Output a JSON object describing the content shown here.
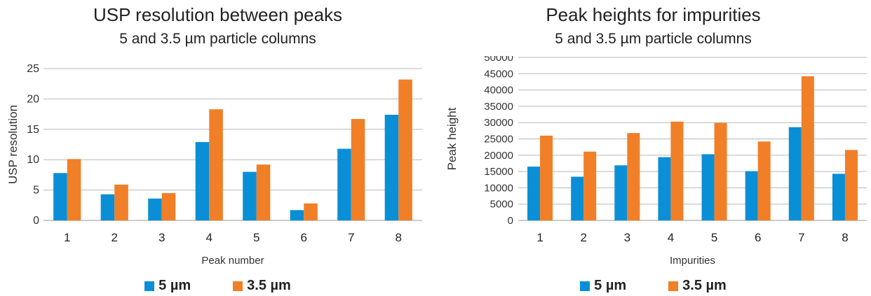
{
  "chart_data": [
    {
      "type": "bar",
      "title": "USP resolution between peaks",
      "subtitle": "5 and 3.5 µm particle columns",
      "xlabel": "Peak number",
      "ylabel": "USP resolution",
      "categories": [
        "1",
        "2",
        "3",
        "4",
        "5",
        "6",
        "7",
        "8"
      ],
      "ylim": [
        0,
        25
      ],
      "yticks": [
        0,
        5,
        10,
        15,
        20,
        25
      ],
      "grid": true,
      "legend": "bottom",
      "series": [
        {
          "name": "5 µm",
          "color": "#0a8fd6",
          "values": [
            7.8,
            4.3,
            3.6,
            12.9,
            8.0,
            1.7,
            11.8,
            17.4
          ]
        },
        {
          "name": "3.5 µm",
          "color": "#f07f28",
          "values": [
            10.1,
            5.9,
            4.5,
            18.3,
            9.2,
            2.8,
            16.7,
            23.2
          ]
        }
      ]
    },
    {
      "type": "bar",
      "title": "Peak heights for impurities",
      "subtitle": "5 and 3.5 µm particle columns",
      "xlabel": "Impurities",
      "ylabel": "Peak height",
      "categories": [
        "1",
        "2",
        "3",
        "4",
        "5",
        "6",
        "7",
        "8"
      ],
      "ylim": [
        0,
        50000
      ],
      "yticks": [
        0,
        5000,
        10000,
        15000,
        20000,
        25000,
        30000,
        35000,
        40000,
        45000,
        50000
      ],
      "grid": true,
      "legend": "bottom",
      "series": [
        {
          "name": "5 µm",
          "color": "#0a8fd6",
          "values": [
            16500,
            13400,
            16900,
            19400,
            20300,
            15100,
            28600,
            14300
          ]
        },
        {
          "name": "3.5 µm",
          "color": "#f07f28",
          "values": [
            26000,
            21100,
            26800,
            30300,
            29900,
            24200,
            44200,
            21600
          ]
        }
      ]
    }
  ]
}
